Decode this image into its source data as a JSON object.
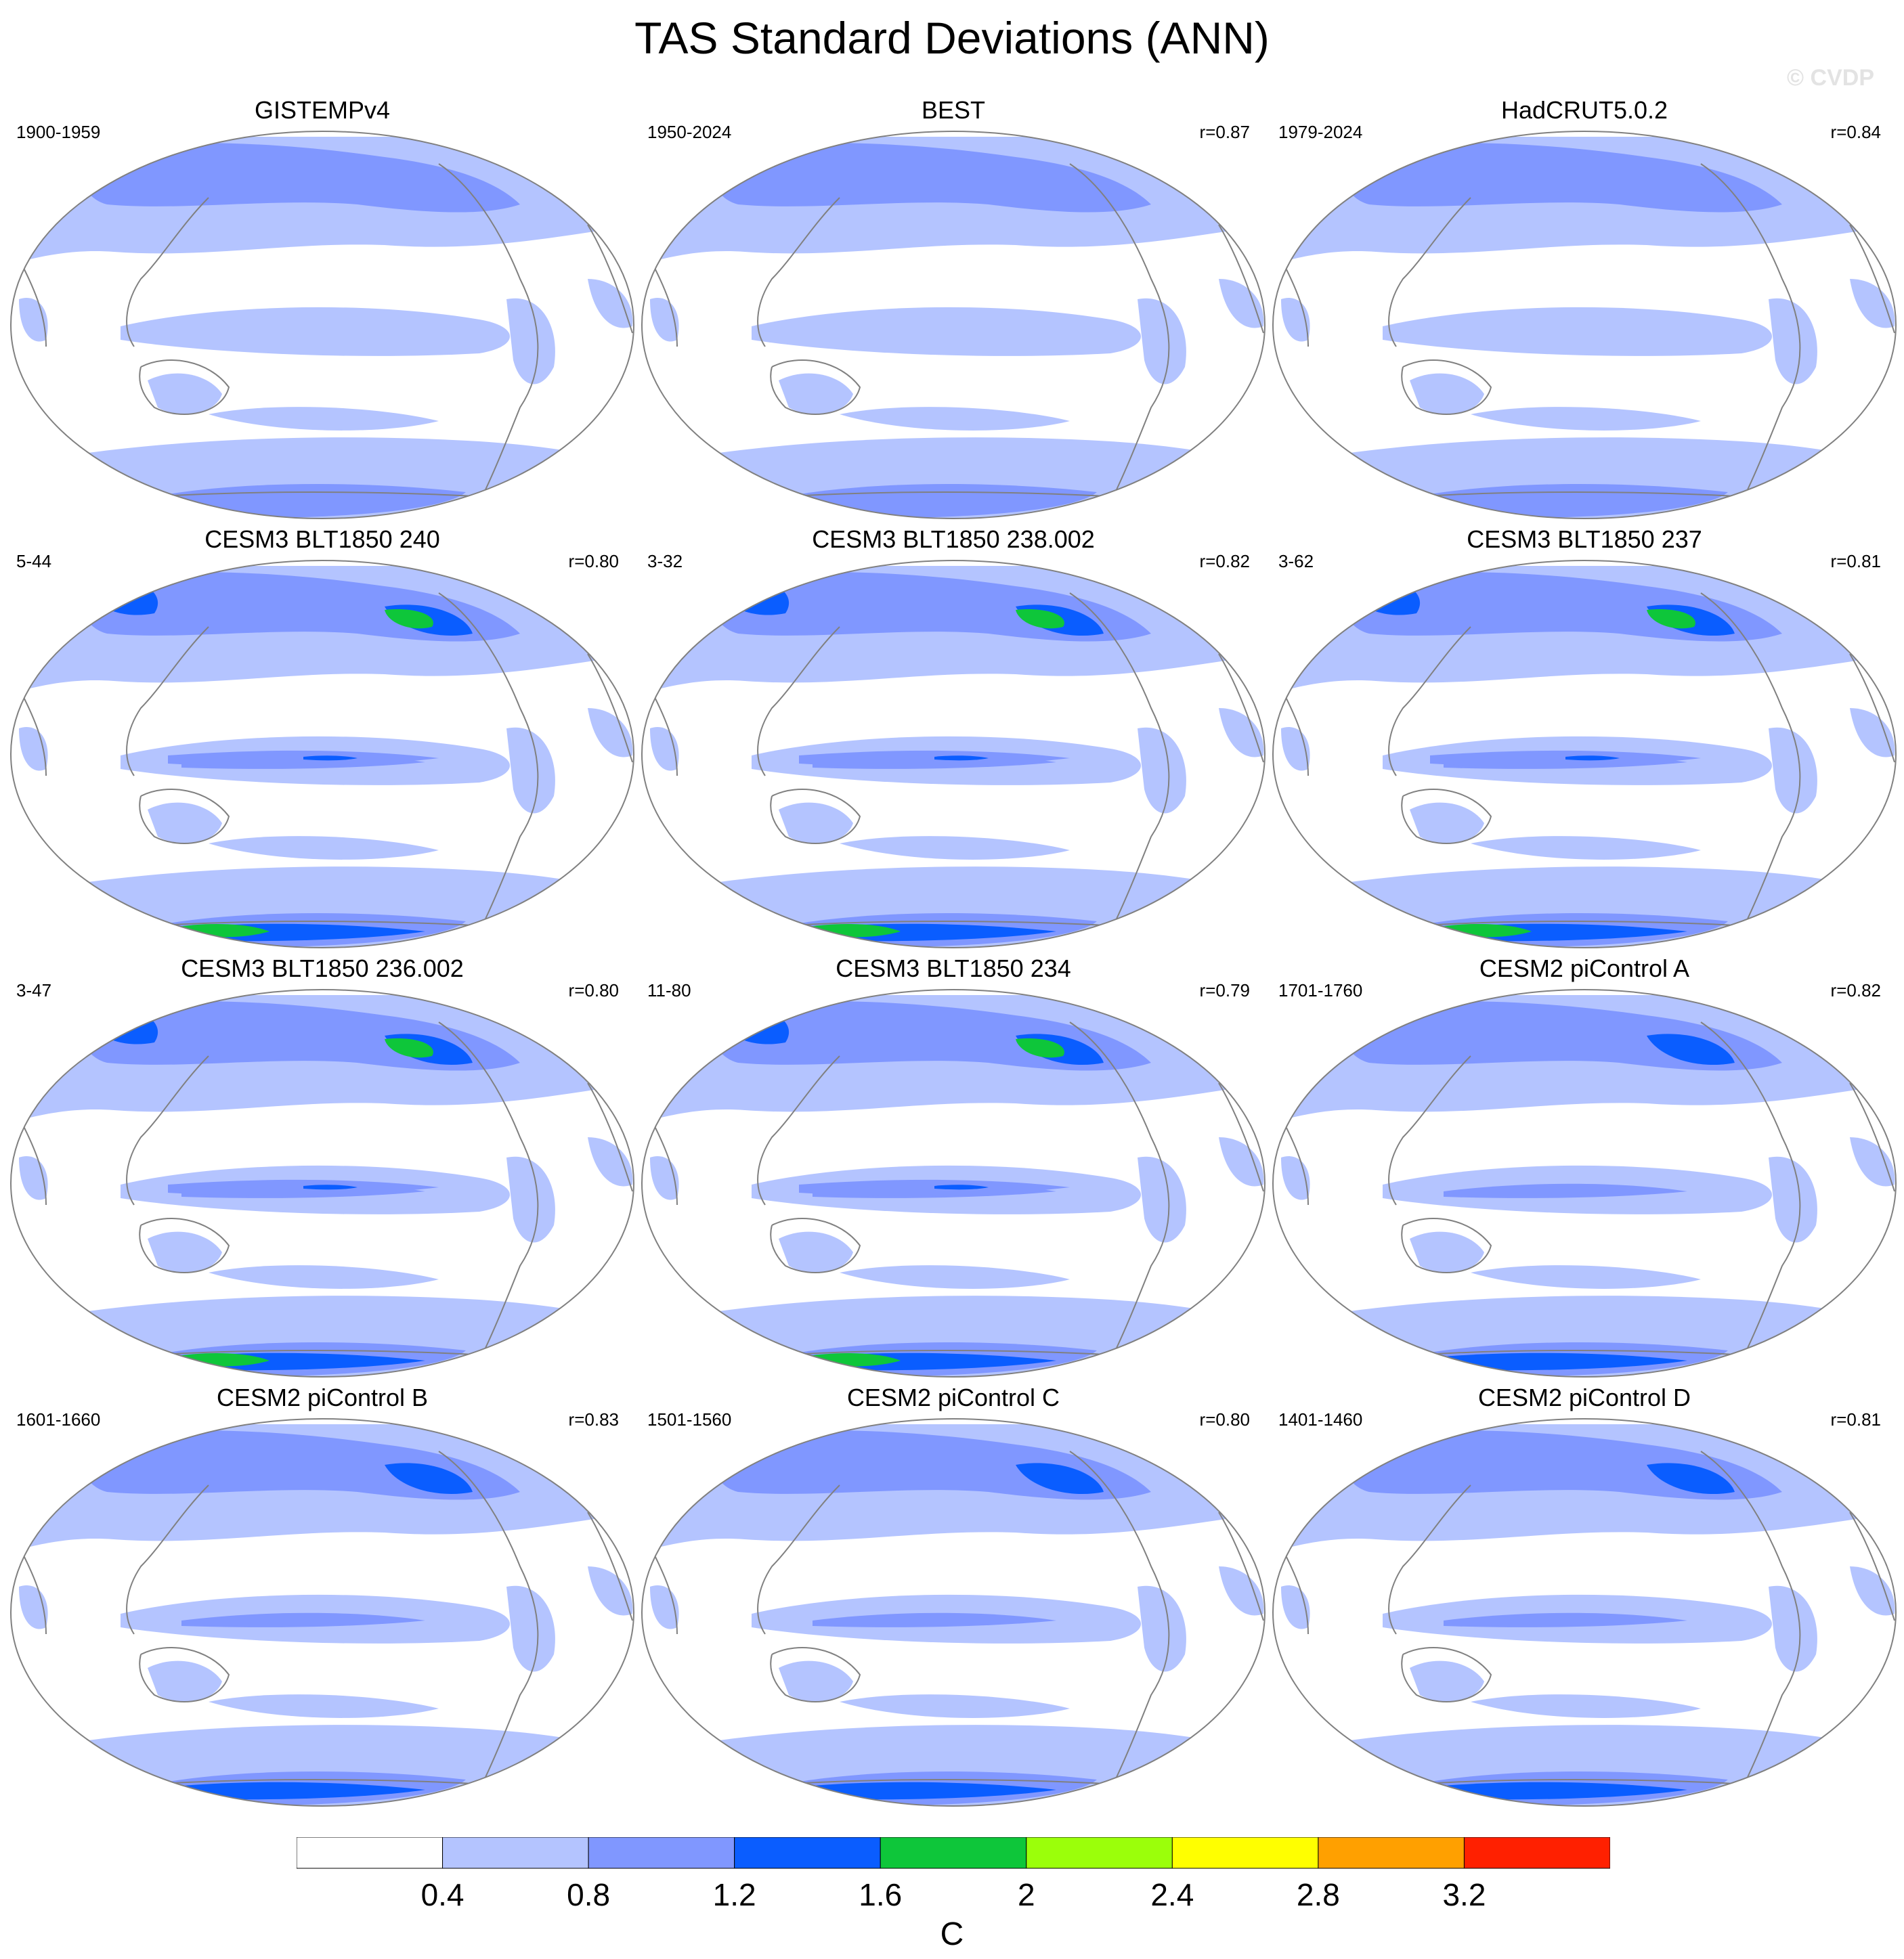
{
  "title": "TAS Standard Deviations (ANN)",
  "watermark": "© CVDP",
  "colors": {
    "levels": [
      "#ffffff",
      "#b4c4ff",
      "#8097ff",
      "#0a5dff",
      "#0ec63a",
      "#9bff0a",
      "#ffff00",
      "#ffa000",
      "#ff2000"
    ],
    "coast": "#808080",
    "outline": "#808080"
  },
  "panels": [
    {
      "name": "GISTEMPv4",
      "years": "1900-1959",
      "r": "",
      "intensity": 1
    },
    {
      "name": "BEST",
      "years": "1950-2024",
      "r": "r=0.87",
      "intensity": 1
    },
    {
      "name": "HadCRUT5.0.2",
      "years": "1979-2024",
      "r": "r=0.84",
      "intensity": 1
    },
    {
      "name": "CESM3 BLT1850 240",
      "years": "5-44",
      "r": "r=0.80",
      "intensity": 3
    },
    {
      "name": "CESM3 BLT1850 238.002",
      "years": "3-32",
      "r": "r=0.82",
      "intensity": 3
    },
    {
      "name": "CESM3 BLT1850 237",
      "years": "3-62",
      "r": "r=0.81",
      "intensity": 3
    },
    {
      "name": "CESM3 BLT1850 236.002",
      "years": "3-47",
      "r": "r=0.80",
      "intensity": 3
    },
    {
      "name": "CESM3 BLT1850 234",
      "years": "11-80",
      "r": "r=0.79",
      "intensity": 3
    },
    {
      "name": "CESM2 piControl A",
      "years": "1701-1760",
      "r": "r=0.82",
      "intensity": 2
    },
    {
      "name": "CESM2 piControl B",
      "years": "1601-1660",
      "r": "r=0.83",
      "intensity": 2
    },
    {
      "name": "CESM2 piControl C",
      "years": "1501-1560",
      "r": "r=0.80",
      "intensity": 2
    },
    {
      "name": "CESM2 piControl D",
      "years": "1401-1460",
      "r": "r=0.81",
      "intensity": 2
    }
  ],
  "colorbar": {
    "labels": [
      "0.4",
      "0.8",
      "1.2",
      "1.6",
      "2",
      "2.4",
      "2.8",
      "3.2"
    ],
    "units": "C"
  }
}
